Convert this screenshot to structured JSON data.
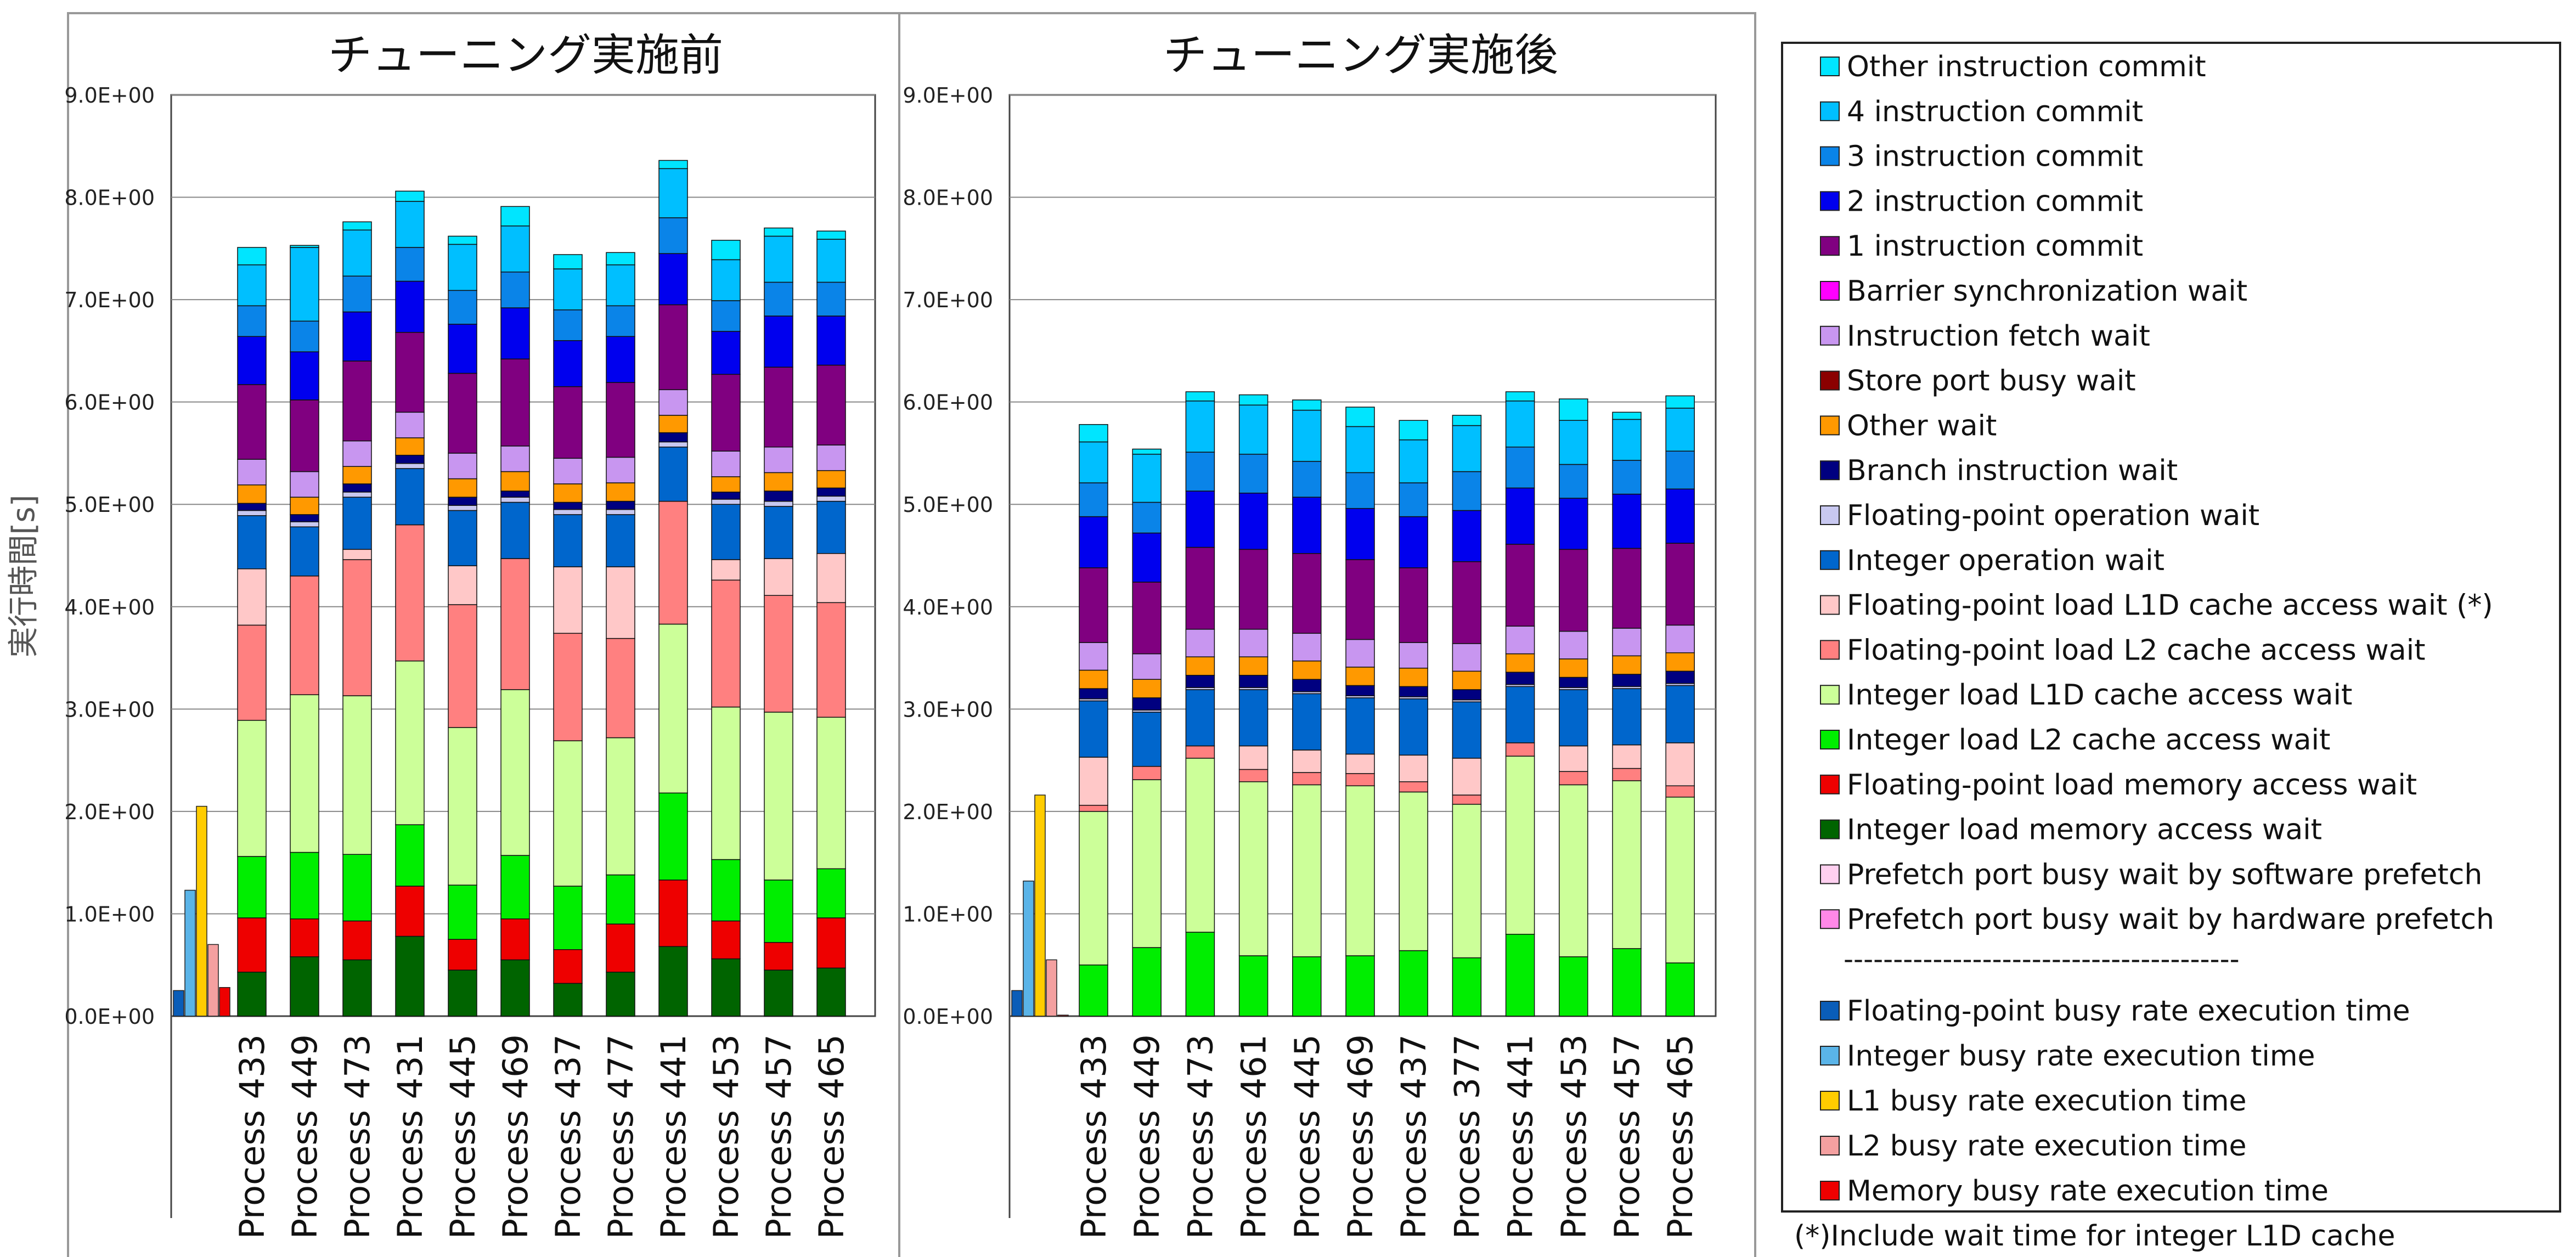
{
  "y_axis_label": "実行時間[s]",
  "y_ticks": [
    "0.0E+00",
    "1.0E+00",
    "2.0E+00",
    "3.0E+00",
    "4.0E+00",
    "5.0E+00",
    "6.0E+00",
    "7.0E+00",
    "8.0E+00",
    "9.0E+00"
  ],
  "legend": {
    "items": [
      {
        "name": "Other instruction commit",
        "color": "#00e5ff"
      },
      {
        "name": "4 instruction commit",
        "color": "#00bfff"
      },
      {
        "name": "3 instruction commit",
        "color": "#0a84e8"
      },
      {
        "name": "2 instruction commit",
        "color": "#0000ee"
      },
      {
        "name": "1 instruction commit",
        "color": "#800080"
      },
      {
        "name": "Barrier synchronization wait",
        "color": "#ff00ff"
      },
      {
        "name": "Instruction fetch wait",
        "color": "#c896f0"
      },
      {
        "name": "Store port busy wait",
        "color": "#8b0000"
      },
      {
        "name": "Other wait",
        "color": "#ff9900"
      },
      {
        "name": "Branch instruction wait",
        "color": "#000080"
      },
      {
        "name": "Floating-point operation wait",
        "color": "#c8c8f0"
      },
      {
        "name": "Integer operation wait",
        "color": "#0066cc"
      },
      {
        "name": "Floating-point load L1D cache access wait (*)",
        "color": "#ffc8c8"
      },
      {
        "name": "Floating-point load L2 cache access wait",
        "color": "#ff8080"
      },
      {
        "name": "Integer load L1D cache access wait",
        "color": "#ccff99"
      },
      {
        "name": "Integer load L2 cache access wait",
        "color": "#00ee00"
      },
      {
        "name": "Floating-point load memory access wait",
        "color": "#ee0000"
      },
      {
        "name": "Integer load memory access wait",
        "color": "#006400"
      },
      {
        "name": "Prefetch port busy wait by software prefetch",
        "color": "#ffd0f0"
      },
      {
        "name": "Prefetch port busy wait by hardware prefetch",
        "color": "#ff88e8"
      }
    ],
    "separator": "----------------------------------------",
    "busy_items": [
      {
        "name": "Floating-point busy rate execution time",
        "color": "#0a5db8"
      },
      {
        "name": "Integer busy rate execution time",
        "color": "#5ab4e8"
      },
      {
        "name": "L1 busy rate execution time",
        "color": "#ffcc00"
      },
      {
        "name": "L2 busy rate execution time",
        "color": "#f4a0a0"
      },
      {
        "name": "Memory busy rate execution time",
        "color": "#ee0000"
      }
    ],
    "footnote": "(*)Include wait time for integer L1D cache"
  },
  "chart_data": [
    {
      "type": "bar",
      "stacked": true,
      "title": "チューニング実施前",
      "ylabel": "実行時間[s]",
      "ylim": [
        0,
        9
      ],
      "categories": [
        "Process 433",
        "Process 449",
        "Process 473",
        "Process 431",
        "Process 445",
        "Process 469",
        "Process 437",
        "Process 477",
        "Process 441",
        "Process 453",
        "Process 457",
        "Process 465"
      ],
      "series": [
        {
          "name": "Integer load memory access wait",
          "values": [
            0.43,
            0.58,
            0.55,
            0.78,
            0.45,
            0.55,
            0.32,
            0.43,
            0.68,
            0.56,
            0.45,
            0.47
          ]
        },
        {
          "name": "Floating-point load memory access wait",
          "values": [
            0.53,
            0.37,
            0.38,
            0.49,
            0.3,
            0.4,
            0.33,
            0.47,
            0.65,
            0.37,
            0.27,
            0.49
          ]
        },
        {
          "name": "Integer load L2 cache access wait",
          "values": [
            0.6,
            0.65,
            0.65,
            0.6,
            0.53,
            0.62,
            0.62,
            0.48,
            0.85,
            0.6,
            0.61,
            0.48
          ]
        },
        {
          "name": "Integer load L1D cache access wait",
          "values": [
            1.33,
            1.54,
            1.55,
            1.6,
            1.54,
            1.62,
            1.42,
            1.34,
            1.65,
            1.49,
            1.64,
            1.48
          ]
        },
        {
          "name": "Floating-point load L2 cache access wait",
          "values": [
            0.93,
            1.16,
            1.33,
            1.33,
            1.2,
            1.28,
            1.05,
            0.97,
            1.2,
            1.24,
            1.14,
            1.12
          ]
        },
        {
          "name": "Floating-point load L1D cache access wait (*)",
          "values": [
            0.55,
            0.0,
            0.1,
            0.0,
            0.38,
            0.0,
            0.65,
            0.7,
            0.0,
            0.2,
            0.36,
            0.48
          ]
        },
        {
          "name": "Integer operation wait",
          "values": [
            0.52,
            0.48,
            0.51,
            0.55,
            0.54,
            0.55,
            0.51,
            0.51,
            0.53,
            0.54,
            0.51,
            0.51
          ]
        },
        {
          "name": "Floating-point operation wait",
          "values": [
            0.05,
            0.05,
            0.05,
            0.05,
            0.05,
            0.05,
            0.05,
            0.05,
            0.05,
            0.05,
            0.05,
            0.05
          ]
        },
        {
          "name": "Branch instruction wait",
          "values": [
            0.07,
            0.07,
            0.08,
            0.08,
            0.08,
            0.06,
            0.07,
            0.08,
            0.09,
            0.07,
            0.1,
            0.08
          ]
        },
        {
          "name": "Other wait",
          "values": [
            0.18,
            0.17,
            0.17,
            0.17,
            0.18,
            0.19,
            0.18,
            0.18,
            0.17,
            0.15,
            0.18,
            0.17
          ]
        },
        {
          "name": "Store port busy wait",
          "values": [
            0.0,
            0.0,
            0.0,
            0.0,
            0.0,
            0.0,
            0.0,
            0.0,
            0.0,
            0.0,
            0.0,
            0.0
          ]
        },
        {
          "name": "Instruction fetch wait",
          "values": [
            0.25,
            0.25,
            0.25,
            0.25,
            0.25,
            0.25,
            0.25,
            0.25,
            0.25,
            0.25,
            0.25,
            0.25
          ]
        },
        {
          "name": "Barrier synchronization wait",
          "values": [
            0.0,
            0.0,
            0.0,
            0.0,
            0.0,
            0.0,
            0.0,
            0.0,
            0.0,
            0.0,
            0.0,
            0.0
          ]
        },
        {
          "name": "1 instruction commit",
          "values": [
            0.73,
            0.7,
            0.78,
            0.78,
            0.78,
            0.85,
            0.7,
            0.73,
            0.83,
            0.75,
            0.78,
            0.78
          ]
        },
        {
          "name": "2 instruction commit",
          "values": [
            0.47,
            0.47,
            0.48,
            0.5,
            0.48,
            0.5,
            0.45,
            0.45,
            0.5,
            0.42,
            0.5,
            0.48
          ]
        },
        {
          "name": "3 instruction commit",
          "values": [
            0.3,
            0.3,
            0.35,
            0.33,
            0.33,
            0.35,
            0.3,
            0.3,
            0.35,
            0.3,
            0.33,
            0.33
          ]
        },
        {
          "name": "4 instruction commit",
          "values": [
            0.4,
            0.72,
            0.45,
            0.45,
            0.45,
            0.45,
            0.4,
            0.4,
            0.48,
            0.4,
            0.45,
            0.42
          ]
        },
        {
          "name": "Other instruction commit",
          "values": [
            0.17,
            0.02,
            0.08,
            0.1,
            0.08,
            0.19,
            0.14,
            0.12,
            0.08,
            0.19,
            0.08,
            0.08
          ]
        }
      ],
      "busy_bars": [
        {
          "name": "Floating-point busy rate execution time",
          "value": 0.25
        },
        {
          "name": "Integer busy rate execution time",
          "value": 1.23
        },
        {
          "name": "L1 busy rate execution time",
          "value": 2.05
        },
        {
          "name": "L2 busy rate execution time",
          "value": 0.7
        },
        {
          "name": "Memory busy rate execution time",
          "value": 0.28
        }
      ]
    },
    {
      "type": "bar",
      "stacked": true,
      "title": "チューニング実施後",
      "ylim": [
        0,
        9
      ],
      "categories": [
        "Process 433",
        "Process 449",
        "Process 473",
        "Process 461",
        "Process 445",
        "Process 469",
        "Process 437",
        "Process 377",
        "Process 441",
        "Process 453",
        "Process 457",
        "Process 465"
      ],
      "series": [
        {
          "name": "Integer load memory access wait",
          "values": [
            0,
            0,
            0,
            0,
            0,
            0,
            0,
            0,
            0,
            0,
            0,
            0
          ]
        },
        {
          "name": "Floating-point load memory access wait",
          "values": [
            0,
            0,
            0,
            0,
            0,
            0,
            0,
            0,
            0,
            0,
            0,
            0
          ]
        },
        {
          "name": "Integer load L2 cache access wait",
          "values": [
            0.5,
            0.67,
            0.82,
            0.59,
            0.58,
            0.59,
            0.64,
            0.57,
            0.8,
            0.58,
            0.66,
            0.52
          ]
        },
        {
          "name": "Integer load L1D cache access wait",
          "values": [
            1.5,
            1.64,
            1.7,
            1.7,
            1.68,
            1.66,
            1.55,
            1.5,
            1.74,
            1.68,
            1.64,
            1.62
          ]
        },
        {
          "name": "Floating-point load L2 cache access wait",
          "values": [
            0.06,
            0.13,
            0.12,
            0.12,
            0.12,
            0.12,
            0.1,
            0.09,
            0.13,
            0.13,
            0.12,
            0.11
          ]
        },
        {
          "name": "Floating-point load L1D cache access wait (*)",
          "values": [
            0.47,
            0.0,
            0.0,
            0.23,
            0.22,
            0.19,
            0.26,
            0.36,
            0.0,
            0.25,
            0.23,
            0.42
          ]
        },
        {
          "name": "Integer operation wait",
          "values": [
            0.55,
            0.53,
            0.55,
            0.55,
            0.55,
            0.55,
            0.55,
            0.55,
            0.55,
            0.55,
            0.55,
            0.56
          ]
        },
        {
          "name": "Floating-point operation wait",
          "values": [
            0.02,
            0.02,
            0.02,
            0.02,
            0.02,
            0.02,
            0.02,
            0.02,
            0.02,
            0.02,
            0.02,
            0.02
          ]
        },
        {
          "name": "Branch instruction wait",
          "values": [
            0.1,
            0.12,
            0.12,
            0.12,
            0.12,
            0.1,
            0.1,
            0.1,
            0.12,
            0.1,
            0.12,
            0.12
          ]
        },
        {
          "name": "Other wait",
          "values": [
            0.18,
            0.18,
            0.18,
            0.18,
            0.18,
            0.18,
            0.18,
            0.18,
            0.18,
            0.18,
            0.18,
            0.18
          ]
        },
        {
          "name": "Store port busy wait",
          "values": [
            0,
            0,
            0,
            0,
            0,
            0,
            0,
            0,
            0,
            0,
            0,
            0
          ]
        },
        {
          "name": "Instruction fetch wait",
          "values": [
            0.27,
            0.25,
            0.27,
            0.27,
            0.27,
            0.27,
            0.25,
            0.27,
            0.27,
            0.27,
            0.27,
            0.27
          ]
        },
        {
          "name": "Barrier synchronization wait",
          "values": [
            0,
            0,
            0,
            0,
            0,
            0,
            0,
            0,
            0,
            0,
            0,
            0
          ]
        },
        {
          "name": "1 instruction commit",
          "values": [
            0.73,
            0.7,
            0.8,
            0.78,
            0.78,
            0.78,
            0.73,
            0.8,
            0.8,
            0.8,
            0.78,
            0.8
          ]
        },
        {
          "name": "2 instruction commit",
          "values": [
            0.5,
            0.48,
            0.55,
            0.55,
            0.55,
            0.5,
            0.5,
            0.5,
            0.55,
            0.5,
            0.53,
            0.53
          ]
        },
        {
          "name": "3 instruction commit",
          "values": [
            0.33,
            0.3,
            0.38,
            0.38,
            0.35,
            0.35,
            0.33,
            0.38,
            0.4,
            0.33,
            0.33,
            0.37
          ]
        },
        {
          "name": "4 instruction commit",
          "values": [
            0.4,
            0.47,
            0.5,
            0.48,
            0.5,
            0.45,
            0.42,
            0.45,
            0.45,
            0.43,
            0.4,
            0.42
          ]
        },
        {
          "name": "Other instruction commit",
          "values": [
            0.17,
            0.05,
            0.09,
            0.1,
            0.1,
            0.19,
            0.19,
            0.1,
            0.09,
            0.21,
            0.07,
            0.12
          ]
        }
      ],
      "busy_bars": [
        {
          "name": "Floating-point busy rate execution time",
          "value": 0.25
        },
        {
          "name": "Integer busy rate execution time",
          "value": 1.32
        },
        {
          "name": "L1 busy rate execution time",
          "value": 2.16
        },
        {
          "name": "L2 busy rate execution time",
          "value": 0.55
        },
        {
          "name": "Memory busy rate execution time",
          "value": 0.01
        }
      ]
    }
  ]
}
